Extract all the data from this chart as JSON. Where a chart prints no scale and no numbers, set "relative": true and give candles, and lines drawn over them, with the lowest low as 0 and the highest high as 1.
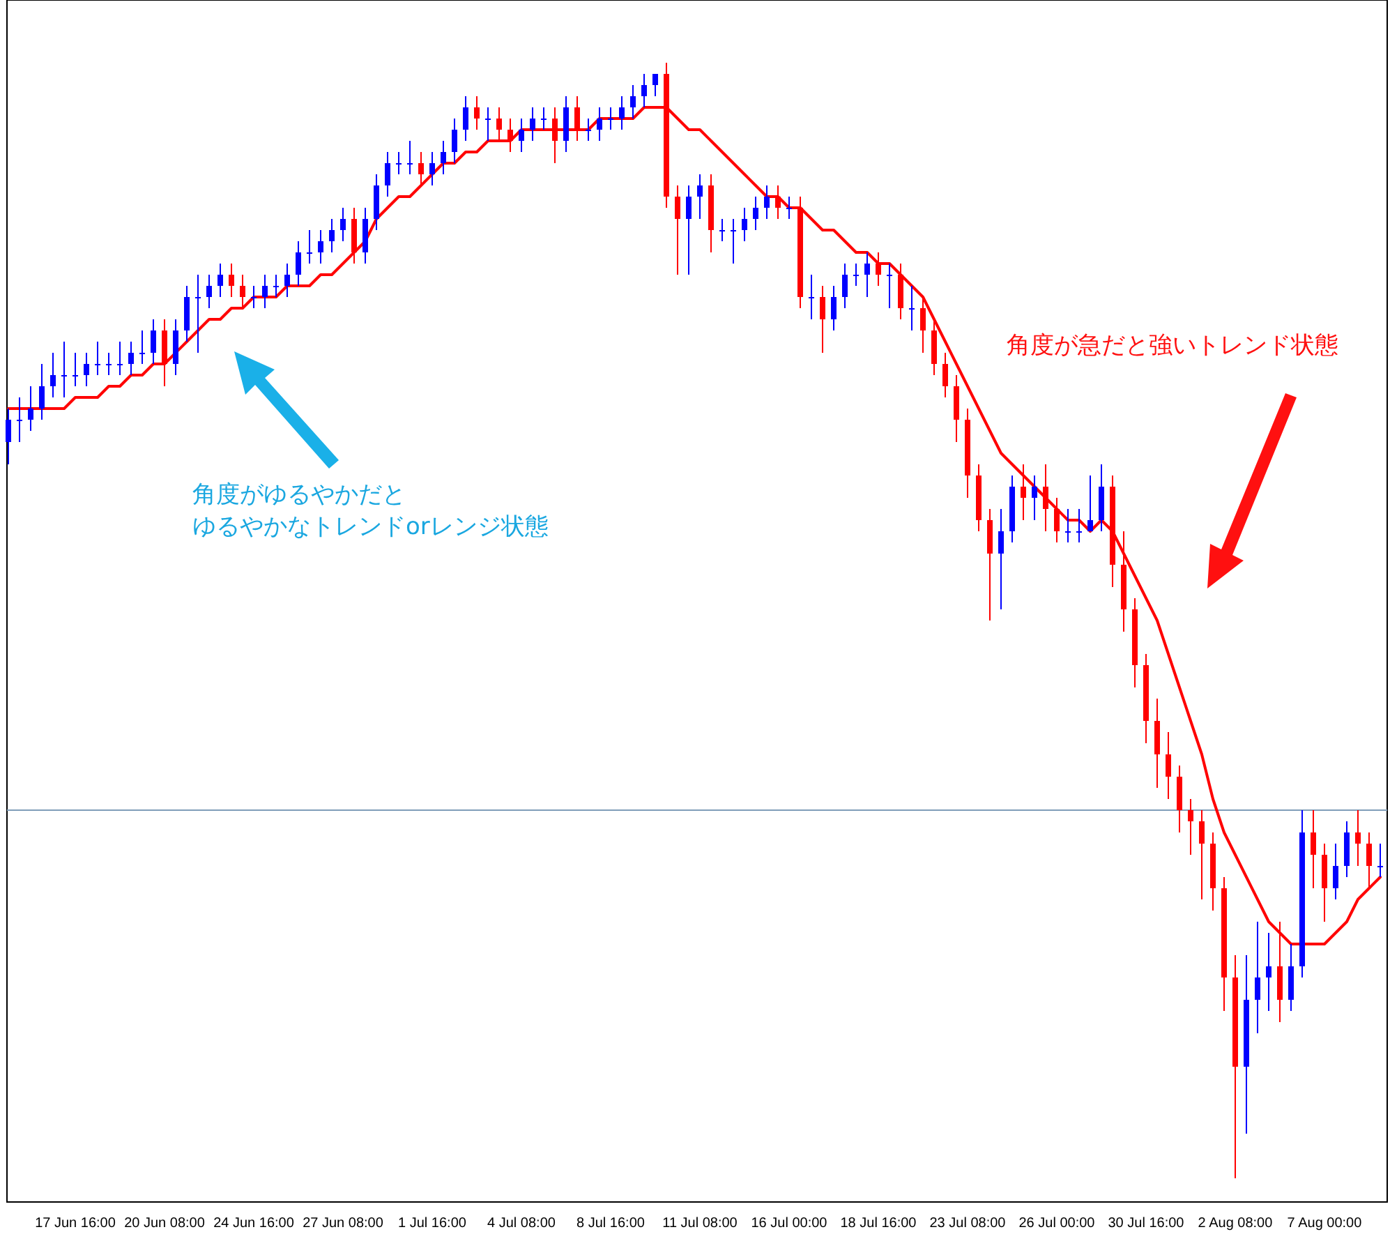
{
  "chart_data": {
    "type": "candlestick",
    "relative": true,
    "categories": [
      null,
      null,
      null,
      null,
      null,
      null,
      "17 Jun 16:00",
      null,
      null,
      null,
      null,
      null,
      null,
      null,
      "20 Jun 08:00",
      null,
      null,
      null,
      null,
      null,
      null,
      null,
      "24 Jun 16:00",
      null,
      null,
      null,
      null,
      null,
      null,
      null,
      "27 Jun 08:00",
      null,
      null,
      null,
      null,
      null,
      null,
      null,
      "1 Jul 16:00",
      null,
      null,
      null,
      null,
      null,
      null,
      null,
      "4 Jul 08:00",
      null,
      null,
      null,
      null,
      null,
      null,
      null,
      "8 Jul 16:00",
      null,
      null,
      null,
      null,
      null,
      null,
      null,
      "11 Jul 08:00",
      null,
      null,
      null,
      null,
      null,
      null,
      null,
      "16 Jul 00:00",
      null,
      null,
      null,
      null,
      null,
      null,
      null,
      "18 Jul 16:00",
      null,
      null,
      null,
      null,
      null,
      null,
      null,
      "23 Jul 08:00",
      null,
      null,
      null,
      null,
      null,
      null,
      null,
      "26 Jul 00:00",
      null,
      null,
      null,
      null,
      null,
      null,
      null,
      "30 Jul 16:00",
      null,
      null,
      null,
      null,
      null,
      null,
      null,
      "2 Aug 08:00",
      null,
      null,
      null,
      null,
      null,
      null,
      null,
      "7 Aug 00:00",
      null,
      null,
      null,
      null,
      null
    ],
    "ohlc": [
      [
        0.66,
        0.69,
        0.64,
        0.68
      ],
      [
        0.68,
        0.7,
        0.66,
        0.68
      ],
      [
        0.68,
        0.71,
        0.67,
        0.69
      ],
      [
        0.69,
        0.73,
        0.68,
        0.71
      ],
      [
        0.71,
        0.74,
        0.7,
        0.72
      ],
      [
        0.72,
        0.75,
        0.7,
        0.72
      ],
      [
        0.72,
        0.74,
        0.71,
        0.72
      ],
      [
        0.72,
        0.74,
        0.71,
        0.73
      ],
      [
        0.73,
        0.75,
        0.72,
        0.73
      ],
      [
        0.73,
        0.74,
        0.72,
        0.73
      ],
      [
        0.73,
        0.75,
        0.72,
        0.73
      ],
      [
        0.73,
        0.75,
        0.72,
        0.74
      ],
      [
        0.74,
        0.76,
        0.73,
        0.74
      ],
      [
        0.74,
        0.77,
        0.73,
        0.76
      ],
      [
        0.76,
        0.77,
        0.71,
        0.73
      ],
      [
        0.73,
        0.77,
        0.72,
        0.76
      ],
      [
        0.76,
        0.8,
        0.75,
        0.79
      ],
      [
        0.79,
        0.81,
        0.74,
        0.79
      ],
      [
        0.79,
        0.81,
        0.78,
        0.8
      ],
      [
        0.8,
        0.82,
        0.79,
        0.81
      ],
      [
        0.81,
        0.82,
        0.79,
        0.8
      ],
      [
        0.8,
        0.81,
        0.78,
        0.79
      ],
      [
        0.79,
        0.8,
        0.78,
        0.79
      ],
      [
        0.79,
        0.81,
        0.78,
        0.8
      ],
      [
        0.8,
        0.81,
        0.79,
        0.8
      ],
      [
        0.8,
        0.82,
        0.79,
        0.81
      ],
      [
        0.81,
        0.84,
        0.8,
        0.83
      ],
      [
        0.83,
        0.85,
        0.82,
        0.83
      ],
      [
        0.83,
        0.85,
        0.82,
        0.84
      ],
      [
        0.84,
        0.86,
        0.83,
        0.85
      ],
      [
        0.85,
        0.87,
        0.84,
        0.86
      ],
      [
        0.86,
        0.87,
        0.82,
        0.83
      ],
      [
        0.83,
        0.87,
        0.82,
        0.86
      ],
      [
        0.86,
        0.9,
        0.85,
        0.89
      ],
      [
        0.89,
        0.92,
        0.88,
        0.91
      ],
      [
        0.91,
        0.92,
        0.9,
        0.91
      ],
      [
        0.91,
        0.93,
        0.9,
        0.91
      ],
      [
        0.91,
        0.92,
        0.89,
        0.9
      ],
      [
        0.9,
        0.92,
        0.89,
        0.91
      ],
      [
        0.91,
        0.93,
        0.9,
        0.92
      ],
      [
        0.92,
        0.95,
        0.91,
        0.94
      ],
      [
        0.94,
        0.97,
        0.93,
        0.96
      ],
      [
        0.96,
        0.97,
        0.94,
        0.95
      ],
      [
        0.95,
        0.96,
        0.93,
        0.95
      ],
      [
        0.95,
        0.96,
        0.93,
        0.94
      ],
      [
        0.94,
        0.95,
        0.92,
        0.93
      ],
      [
        0.93,
        0.95,
        0.92,
        0.94
      ],
      [
        0.94,
        0.96,
        0.93,
        0.95
      ],
      [
        0.95,
        0.96,
        0.94,
        0.95
      ],
      [
        0.95,
        0.96,
        0.91,
        0.93
      ],
      [
        0.93,
        0.97,
        0.92,
        0.96
      ],
      [
        0.96,
        0.97,
        0.93,
        0.94
      ],
      [
        0.94,
        0.95,
        0.93,
        0.94
      ],
      [
        0.94,
        0.96,
        0.93,
        0.95
      ],
      [
        0.95,
        0.96,
        0.94,
        0.95
      ],
      [
        0.95,
        0.97,
        0.94,
        0.96
      ],
      [
        0.96,
        0.98,
        0.95,
        0.97
      ],
      [
        0.97,
        0.99,
        0.96,
        0.98
      ],
      [
        0.98,
        0.99,
        0.97,
        0.99
      ],
      [
        0.99,
        1.0,
        0.87,
        0.88
      ],
      [
        0.88,
        0.89,
        0.81,
        0.86
      ],
      [
        0.86,
        0.89,
        0.81,
        0.88
      ],
      [
        0.88,
        0.9,
        0.86,
        0.89
      ],
      [
        0.89,
        0.9,
        0.83,
        0.85
      ],
      [
        0.85,
        0.86,
        0.84,
        0.85
      ],
      [
        0.85,
        0.86,
        0.82,
        0.85
      ],
      [
        0.85,
        0.87,
        0.84,
        0.86
      ],
      [
        0.86,
        0.88,
        0.85,
        0.87
      ],
      [
        0.87,
        0.89,
        0.86,
        0.88
      ],
      [
        0.88,
        0.89,
        0.86,
        0.87
      ],
      [
        0.87,
        0.88,
        0.86,
        0.87
      ],
      [
        0.87,
        0.88,
        0.78,
        0.79
      ],
      [
        0.79,
        0.81,
        0.77,
        0.79
      ],
      [
        0.79,
        0.8,
        0.74,
        0.77
      ],
      [
        0.77,
        0.8,
        0.76,
        0.79
      ],
      [
        0.79,
        0.82,
        0.78,
        0.81
      ],
      [
        0.81,
        0.82,
        0.8,
        0.81
      ],
      [
        0.81,
        0.83,
        0.79,
        0.82
      ],
      [
        0.82,
        0.83,
        0.8,
        0.81
      ],
      [
        0.81,
        0.82,
        0.78,
        0.81
      ],
      [
        0.81,
        0.82,
        0.77,
        0.78
      ],
      [
        0.78,
        0.8,
        0.76,
        0.78
      ],
      [
        0.78,
        0.79,
        0.74,
        0.76
      ],
      [
        0.76,
        0.77,
        0.72,
        0.73
      ],
      [
        0.73,
        0.74,
        0.7,
        0.71
      ],
      [
        0.71,
        0.72,
        0.66,
        0.68
      ],
      [
        0.68,
        0.69,
        0.61,
        0.63
      ],
      [
        0.63,
        0.64,
        0.58,
        0.59
      ],
      [
        0.59,
        0.6,
        0.5,
        0.56
      ],
      [
        0.56,
        0.6,
        0.51,
        0.58
      ],
      [
        0.58,
        0.63,
        0.57,
        0.62
      ],
      [
        0.62,
        0.64,
        0.59,
        0.61
      ],
      [
        0.61,
        0.63,
        0.59,
        0.62
      ],
      [
        0.62,
        0.64,
        0.58,
        0.6
      ],
      [
        0.6,
        0.61,
        0.57,
        0.58
      ],
      [
        0.58,
        0.6,
        0.57,
        0.58
      ],
      [
        0.58,
        0.6,
        0.57,
        0.58
      ],
      [
        0.58,
        0.63,
        0.58,
        0.59
      ],
      [
        0.59,
        0.64,
        0.58,
        0.62
      ],
      [
        0.62,
        0.63,
        0.53,
        0.55
      ],
      [
        0.55,
        0.58,
        0.49,
        0.51
      ],
      [
        0.51,
        0.52,
        0.44,
        0.46
      ],
      [
        0.46,
        0.47,
        0.39,
        0.41
      ],
      [
        0.41,
        0.43,
        0.35,
        0.38
      ],
      [
        0.38,
        0.4,
        0.34,
        0.36
      ],
      [
        0.36,
        0.37,
        0.31,
        0.33
      ],
      [
        0.33,
        0.34,
        0.29,
        0.32
      ],
      [
        0.32,
        0.33,
        0.25,
        0.3
      ],
      [
        0.3,
        0.31,
        0.24,
        0.26
      ],
      [
        0.26,
        0.27,
        0.15,
        0.18
      ],
      [
        0.18,
        0.2,
        0.0,
        0.1
      ],
      [
        0.1,
        0.2,
        0.04,
        0.16
      ],
      [
        0.16,
        0.23,
        0.13,
        0.18
      ],
      [
        0.18,
        0.22,
        0.15,
        0.19
      ],
      [
        0.19,
        0.23,
        0.14,
        0.16
      ],
      [
        0.16,
        0.21,
        0.15,
        0.19
      ],
      [
        0.19,
        0.33,
        0.18,
        0.31
      ],
      [
        0.31,
        0.33,
        0.26,
        0.29
      ],
      [
        0.29,
        0.3,
        0.23,
        0.26
      ],
      [
        0.26,
        0.3,
        0.25,
        0.28
      ],
      [
        0.28,
        0.32,
        0.27,
        0.31
      ],
      [
        0.31,
        0.33,
        0.28,
        0.3
      ],
      [
        0.3,
        0.31,
        0.26,
        0.28
      ],
      [
        0.28,
        0.3,
        0.27,
        0.28
      ]
    ],
    "colors": [
      "#0000ff",
      "#0000ff",
      "#0000ff",
      "#0000ff",
      "#0000ff",
      "#0000ff",
      "#0000ff",
      "#0000ff",
      "#0000ff",
      "#0000ff",
      "#0000ff",
      "#0000ff",
      "#0000ff",
      "#0000ff",
      "#ff0000",
      "#0000ff",
      "#0000ff",
      "#0000ff",
      "#0000ff",
      "#0000ff",
      "#ff0000",
      "#ff0000",
      "#0000ff",
      "#0000ff",
      "#0000ff",
      "#0000ff",
      "#0000ff",
      "#0000ff",
      "#0000ff",
      "#0000ff",
      "#0000ff",
      "#ff0000",
      "#0000ff",
      "#0000ff",
      "#0000ff",
      "#0000ff",
      "#0000ff",
      "#ff0000",
      "#0000ff",
      "#0000ff",
      "#0000ff",
      "#0000ff",
      "#ff0000",
      "#0000ff",
      "#ff0000",
      "#ff0000",
      "#0000ff",
      "#0000ff",
      "#0000ff",
      "#ff0000",
      "#0000ff",
      "#ff0000",
      "#0000ff",
      "#0000ff",
      "#0000ff",
      "#0000ff",
      "#0000ff",
      "#0000ff",
      "#0000ff",
      "#ff0000",
      "#ff0000",
      "#0000ff",
      "#0000ff",
      "#ff0000",
      "#0000ff",
      "#0000ff",
      "#0000ff",
      "#0000ff",
      "#0000ff",
      "#ff0000",
      "#0000ff",
      "#ff0000",
      "#0000ff",
      "#ff0000",
      "#0000ff",
      "#0000ff",
      "#0000ff",
      "#0000ff",
      "#ff0000",
      "#0000ff",
      "#ff0000",
      "#0000ff",
      "#ff0000",
      "#ff0000",
      "#ff0000",
      "#ff0000",
      "#ff0000",
      "#ff0000",
      "#ff0000",
      "#0000ff",
      "#0000ff",
      "#ff0000",
      "#0000ff",
      "#ff0000",
      "#ff0000",
      "#0000ff",
      "#0000ff",
      "#0000ff",
      "#0000ff",
      "#ff0000",
      "#ff0000",
      "#ff0000",
      "#ff0000",
      "#ff0000",
      "#ff0000",
      "#ff0000",
      "#ff0000",
      "#ff0000",
      "#ff0000",
      "#ff0000",
      "#ff0000",
      "#0000ff",
      "#0000ff",
      "#0000ff",
      "#ff0000",
      "#0000ff",
      "#0000ff",
      "#ff0000",
      "#ff0000",
      "#0000ff",
      "#0000ff",
      "#ff0000",
      "#ff0000",
      "#0000ff"
    ],
    "series": [
      {
        "type": "line",
        "color": "#ff0000",
        "values": [
          0.69,
          0.69,
          0.69,
          0.69,
          0.69,
          0.69,
          0.7,
          0.7,
          0.7,
          0.71,
          0.71,
          0.72,
          0.72,
          0.73,
          0.73,
          0.74,
          0.75,
          0.76,
          0.77,
          0.77,
          0.78,
          0.78,
          0.79,
          0.79,
          0.79,
          0.8,
          0.8,
          0.8,
          0.81,
          0.81,
          0.82,
          0.83,
          0.84,
          0.86,
          0.87,
          0.88,
          0.88,
          0.89,
          0.9,
          0.91,
          0.91,
          0.92,
          0.92,
          0.93,
          0.93,
          0.93,
          0.94,
          0.94,
          0.94,
          0.94,
          0.94,
          0.94,
          0.94,
          0.95,
          0.95,
          0.95,
          0.95,
          0.96,
          0.96,
          0.96,
          0.95,
          0.94,
          0.94,
          0.93,
          0.92,
          0.91,
          0.9,
          0.89,
          0.88,
          0.88,
          0.87,
          0.87,
          0.86,
          0.85,
          0.85,
          0.84,
          0.83,
          0.83,
          0.82,
          0.82,
          0.81,
          0.8,
          0.79,
          0.77,
          0.75,
          0.73,
          0.71,
          0.69,
          0.67,
          0.65,
          0.64,
          0.63,
          0.62,
          0.61,
          0.6,
          0.59,
          0.59,
          0.58,
          0.59,
          0.58,
          0.56,
          0.54,
          0.52,
          0.5,
          0.47,
          0.44,
          0.41,
          0.38,
          0.34,
          0.31,
          0.29,
          0.27,
          0.25,
          0.23,
          0.22,
          0.21,
          0.21,
          0.21,
          0.21,
          0.22,
          0.23,
          0.25,
          0.26,
          0.27
        ]
      }
    ],
    "ref_lines": [
      {
        "axis": "y",
        "value": 0.33,
        "color": "#7f9db9"
      }
    ],
    "annotations": [
      "角度がゆるやかだと",
      "ゆるやかなトレンドorレンジ状態",
      "角度が急だと強いトレンド状態"
    ]
  }
}
